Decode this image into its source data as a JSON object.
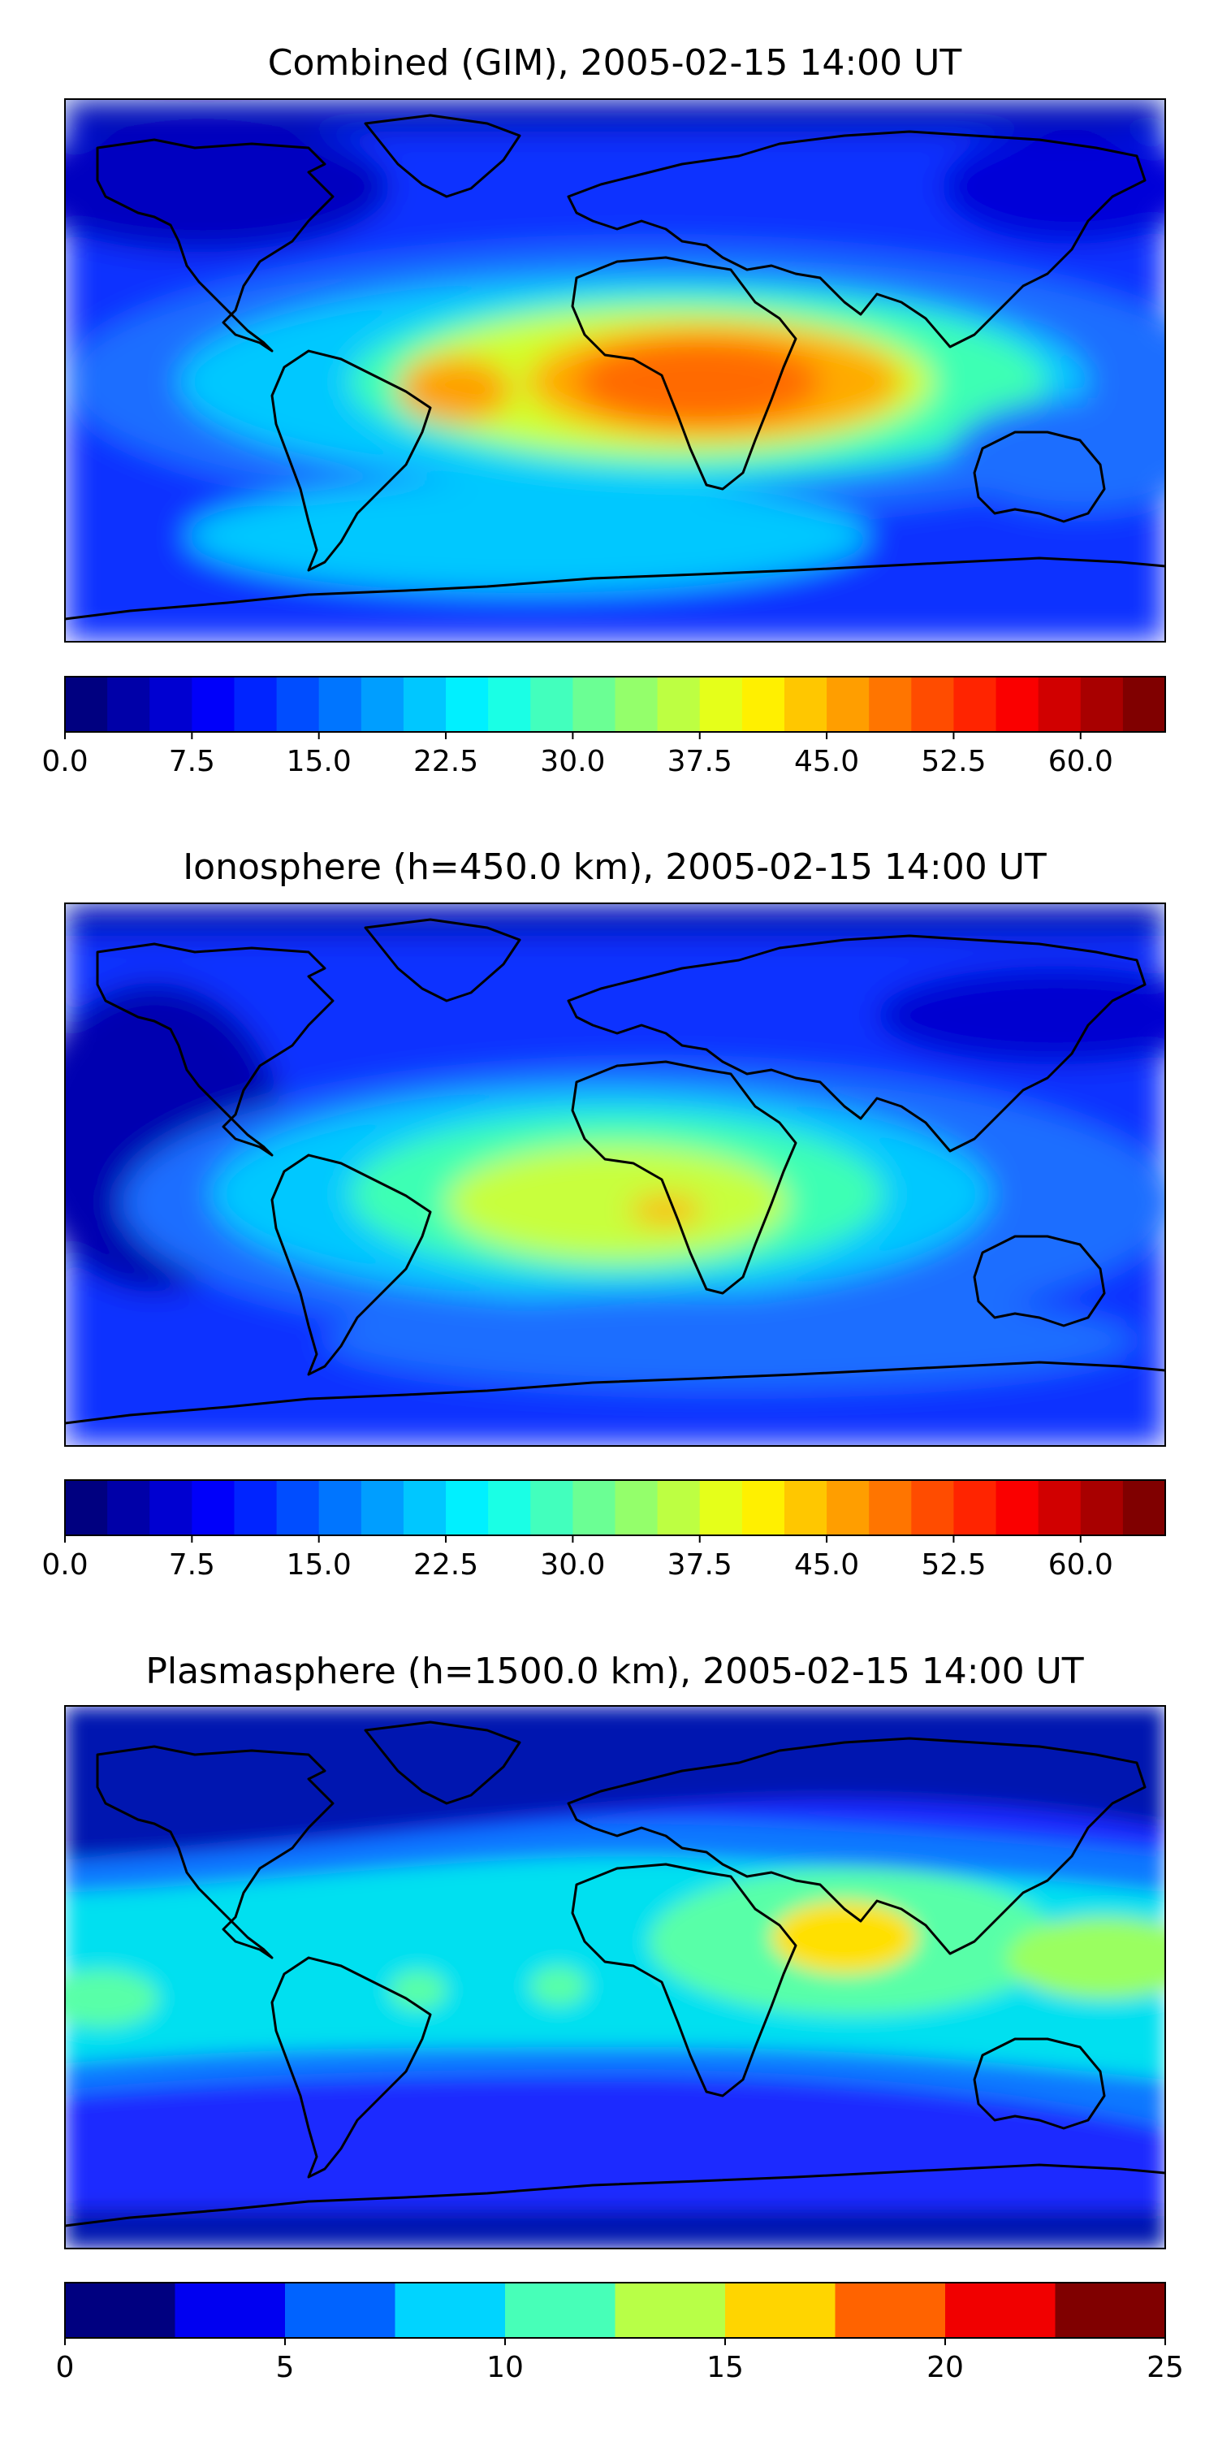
{
  "chart_data": [
    {
      "type": "heatmap",
      "title": "Combined (GIM), 2005-02-15 14:00 UT",
      "colorbar": {
        "min": 0,
        "max": 65,
        "levels": 26,
        "ticks": [
          "0.0",
          "7.5",
          "15.0",
          "22.5",
          "30.0",
          "37.5",
          "45.0",
          "52.5",
          "60.0"
        ],
        "tick_values": [
          0,
          7.5,
          15,
          22.5,
          30,
          37.5,
          45,
          52.5,
          60
        ]
      },
      "features": [
        {
          "name": "background",
          "value": 8
        },
        {
          "name": "tropical-band",
          "lon": 10,
          "lat": 5,
          "value": 22
        },
        {
          "name": "africa-max",
          "lon": 15,
          "lat": 5,
          "value": 50
        },
        {
          "name": "south-america-max",
          "lon": -55,
          "lat": 0,
          "value": 42
        },
        {
          "name": "arabia-high",
          "lon": 45,
          "lat": 12,
          "value": 38
        },
        {
          "name": "south-atlantic-ridge",
          "lon": -25,
          "lat": -35,
          "value": 22
        },
        {
          "name": "arctic-low",
          "lon": -120,
          "lat": 75,
          "value": 3
        }
      ]
    },
    {
      "type": "heatmap",
      "title": "Ionosphere  (h=450.0 km), 2005-02-15 14:00 UT",
      "colorbar": {
        "min": 0,
        "max": 65,
        "levels": 26,
        "ticks": [
          "0.0",
          "7.5",
          "15.0",
          "22.5",
          "30.0",
          "37.5",
          "45.0",
          "52.5",
          "60.0"
        ],
        "tick_values": [
          0,
          7.5,
          15,
          22.5,
          30,
          37.5,
          45,
          52.5,
          60
        ]
      },
      "features": [
        {
          "name": "background",
          "value": 7
        },
        {
          "name": "africa-max",
          "lon": 15,
          "lat": -5,
          "value": 42
        },
        {
          "name": "south-america-high",
          "lon": -50,
          "lat": -5,
          "value": 33
        },
        {
          "name": "tropical-band",
          "lon": 0,
          "lat": 0,
          "value": 20
        },
        {
          "name": "pacific-low",
          "lon": -150,
          "lat": 10,
          "value": 3
        }
      ]
    },
    {
      "type": "heatmap",
      "title": "Plasmasphere (h=1500.0 km), 2005-02-15 14:00 UT",
      "colorbar": {
        "min": 0,
        "max": 25,
        "levels": 10,
        "ticks": [
          "0",
          "5",
          "10",
          "15",
          "20",
          "25"
        ],
        "tick_values": [
          0,
          5,
          10,
          15,
          20,
          25
        ]
      },
      "features": [
        {
          "name": "background",
          "value": 1.5
        },
        {
          "name": "equatorial-belt",
          "lon": 0,
          "lat": 5,
          "value": 8.5
        },
        {
          "name": "india-max",
          "lon": 80,
          "lat": 15,
          "value": 16
        },
        {
          "name": "south-america-spot",
          "lon": -55,
          "lat": 0,
          "value": 12
        },
        {
          "name": "atlantic-spot",
          "lon": -35,
          "lat": 0,
          "value": 12
        },
        {
          "name": "pacific-west",
          "lon": -175,
          "lat": -5,
          "value": 11
        }
      ]
    }
  ]
}
